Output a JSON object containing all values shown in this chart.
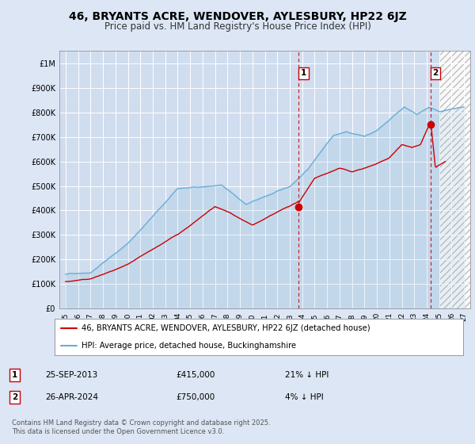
{
  "title": "46, BRYANTS ACRE, WENDOVER, AYLESBURY, HP22 6JZ",
  "subtitle": "Price paid vs. HM Land Registry's House Price Index (HPI)",
  "title_fontsize": 10,
  "subtitle_fontsize": 8.5,
  "background_color": "#dce6f5",
  "plot_bg_color": "#d0ddef",
  "grid_color": "#ffffff",
  "hpi_color": "#6aaed6",
  "price_color": "#cc0000",
  "marker_color": "#cc0000",
  "marker1_x": 2013.73,
  "marker1_y": 415000,
  "marker2_x": 2024.32,
  "marker2_y": 750000,
  "vline1_x": 2013.73,
  "vline2_x": 2024.32,
  "ylim": [
    0,
    1050000
  ],
  "xlim": [
    1994.5,
    2027.5
  ],
  "yticks": [
    0,
    100000,
    200000,
    300000,
    400000,
    500000,
    600000,
    700000,
    800000,
    900000,
    1000000
  ],
  "ytick_labels": [
    "£0",
    "£100K",
    "£200K",
    "£300K",
    "£400K",
    "£500K",
    "£600K",
    "£700K",
    "£800K",
    "£900K",
    "£1M"
  ],
  "xtick_years": [
    1995,
    1996,
    1997,
    1998,
    1999,
    2000,
    2001,
    2002,
    2003,
    2004,
    2005,
    2006,
    2007,
    2008,
    2009,
    2010,
    2011,
    2012,
    2013,
    2014,
    2015,
    2016,
    2017,
    2018,
    2019,
    2020,
    2021,
    2022,
    2023,
    2024,
    2025,
    2026,
    2027
  ],
  "legend_entries": [
    "46, BRYANTS ACRE, WENDOVER, AYLESBURY, HP22 6JZ (detached house)",
    "HPI: Average price, detached house, Buckinghamshire"
  ],
  "annotation1_label": "1",
  "annotation1_date": "25-SEP-2013",
  "annotation1_price": "£415,000",
  "annotation1_hpi": "21% ↓ HPI",
  "annotation2_label": "2",
  "annotation2_date": "26-APR-2024",
  "annotation2_price": "£750,000",
  "annotation2_hpi": "4% ↓ HPI",
  "footer": "Contains HM Land Registry data © Crown copyright and database right 2025.\nThis data is licensed under the Open Government Licence v3.0."
}
